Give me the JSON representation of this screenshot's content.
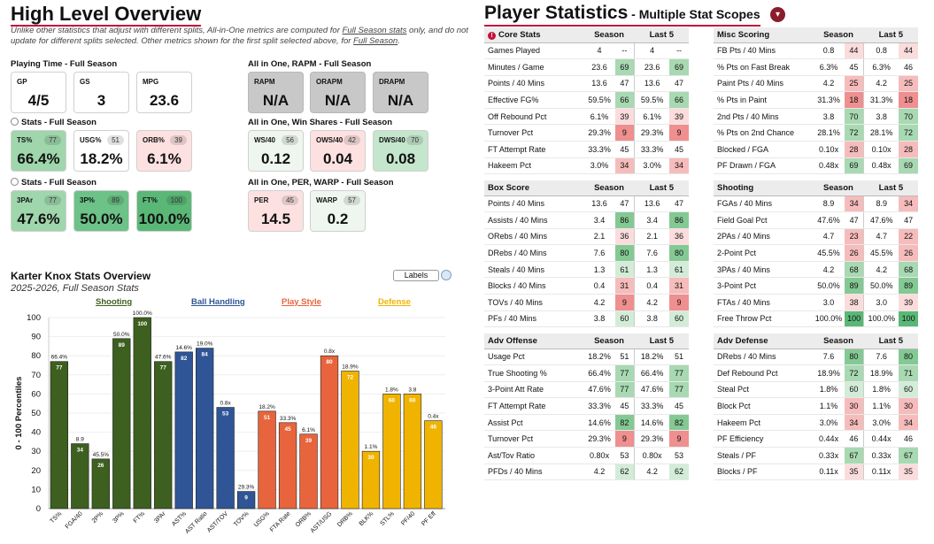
{
  "left": {
    "title": "High Level Overview",
    "note_pre": "Unlike other statistics that adjust with different splits, All-in-One metrics are computed for ",
    "note_link1": "Full Season stats",
    "note_mid": " only, and do not update for different splits selected. Other metrics shown for the first split selected above, for ",
    "note_link2": "Full Season",
    "note_end": ".",
    "groups": {
      "playing_time": "Playing Time - Full Season",
      "stats1": "Stats - Full Season",
      "stats2": "Stats - Full Season",
      "rapm": "All in One, RAPM - Full Season",
      "ws": "All in One, Win Shares - Full Season",
      "per": "All in One, PER, WARP - Full Season"
    },
    "boxes": {
      "gp": {
        "label": "GP",
        "value": "4/5"
      },
      "gs": {
        "label": "GS",
        "value": "3"
      },
      "mpg": {
        "label": "MPG",
        "value": "23.6"
      },
      "ts": {
        "label": "TS%",
        "pct": "77",
        "value": "66.4%"
      },
      "usg": {
        "label": "USG%",
        "pct": "51",
        "value": "18.2%"
      },
      "orb": {
        "label": "ORB%",
        "pct": "39",
        "value": "6.1%"
      },
      "tpar": {
        "label": "3PAr",
        "pct": "77",
        "value": "47.6%"
      },
      "tpp": {
        "label": "3P%",
        "pct": "89",
        "value": "50.0%"
      },
      "ft": {
        "label": "FT%",
        "pct": "100",
        "value": "100.0%"
      },
      "rapm": {
        "label": "RAPM",
        "value": "N/A"
      },
      "orapm": {
        "label": "ORAPM",
        "value": "N/A"
      },
      "drapm": {
        "label": "DRAPM",
        "value": "N/A"
      },
      "ws40": {
        "label": "WS/40",
        "pct": "56",
        "value": "0.12"
      },
      "ows40": {
        "label": "OWS/40",
        "pct": "42",
        "value": "0.04"
      },
      "dws40": {
        "label": "DWS/40",
        "pct": "70",
        "value": "0.08"
      },
      "per": {
        "label": "PER",
        "pct": "45",
        "value": "14.5"
      },
      "warp": {
        "label": "WARP",
        "pct": "57",
        "value": "0.2"
      }
    },
    "chart_title": "Karter Knox Stats Overview",
    "chart_subtitle": "2025-2026, Full Season Stats",
    "labels_button": "Labels",
    "categories": [
      {
        "name": "Shooting",
        "color": "#3d5f1f"
      },
      {
        "name": "Ball Handling",
        "color": "#2f5596"
      },
      {
        "name": "Play Style",
        "color": "#e8643c"
      },
      {
        "name": "Defense",
        "color": "#f0b400"
      }
    ]
  },
  "chart_data": {
    "type": "bar",
    "title": "Karter Knox Stats Overview",
    "subtitle": "2025-2026, Full Season Stats",
    "ylabel": "0 - 100 Percentiles",
    "ylim": [
      0,
      100
    ],
    "yticks": [
      0,
      10,
      20,
      30,
      40,
      50,
      60,
      70,
      80,
      90,
      100
    ],
    "bars": [
      {
        "label": "TS%",
        "value": 77,
        "raw": "66.4%",
        "group": "Shooting"
      },
      {
        "label": "FGA/40",
        "value": 34,
        "raw": "8.9",
        "group": "Shooting"
      },
      {
        "label": "2P%",
        "value": 26,
        "raw": "45.5%",
        "group": "Shooting"
      },
      {
        "label": "3P%",
        "value": 89,
        "raw": "50.0%",
        "group": "Shooting"
      },
      {
        "label": "FT%",
        "value": 100,
        "raw": "100.0%",
        "group": "Shooting"
      },
      {
        "label": "3PAr",
        "value": 77,
        "raw": "47.6%",
        "group": "Shooting"
      },
      {
        "label": "AST%",
        "value": 82,
        "raw": "14.6%",
        "group": "Ball Handling"
      },
      {
        "label": "AST Ratio",
        "value": 84,
        "raw": "19.0%",
        "group": "Ball Handling"
      },
      {
        "label": "AST/TOV",
        "value": 53,
        "raw": "0.8x",
        "group": "Ball Handling"
      },
      {
        "label": "TOV%",
        "value": 9,
        "raw": "29.3%",
        "group": "Ball Handling"
      },
      {
        "label": "USG%",
        "value": 51,
        "raw": "18.2%",
        "group": "Play Style"
      },
      {
        "label": "FTA Rate",
        "value": 45,
        "raw": "33.3%",
        "group": "Play Style"
      },
      {
        "label": "ORB%",
        "value": 39,
        "raw": "6.1%",
        "group": "Play Style"
      },
      {
        "label": "AST/USG",
        "value": 80,
        "raw": "0.8x",
        "group": "Play Style"
      },
      {
        "label": "DRB%",
        "value": 72,
        "raw": "18.9%",
        "group": "Defense"
      },
      {
        "label": "BLK%",
        "value": 30,
        "raw": "1.1%",
        "group": "Defense"
      },
      {
        "label": "STL%",
        "value": 60,
        "raw": "1.8%",
        "group": "Defense"
      },
      {
        "label": "PF/40",
        "value": 60,
        "raw": "3.8",
        "group": "Defense"
      },
      {
        "label": "PF Eff",
        "value": 46,
        "raw": "0.4x",
        "group": "Defense"
      }
    ]
  },
  "right": {
    "title": "Player Statistics",
    "subtitle": " - Multiple Stat Scopes",
    "scope_icon": "info-icon",
    "col_season": "Season",
    "col_last5": "Last 5",
    "tables": [
      {
        "key": "core",
        "title": "Core Stats",
        "rows": [
          [
            "Games Played",
            "4",
            "--",
            "4",
            "--"
          ],
          [
            "Minutes / Game",
            "23.6",
            "69",
            "23.6",
            "69"
          ],
          [
            "Points / 40 Mins",
            "13.6",
            "47",
            "13.6",
            "47"
          ],
          [
            "Effective FG%",
            "59.5%",
            "66",
            "59.5%",
            "66"
          ],
          [
            "Off Rebound Pct",
            "6.1%",
            "39",
            "6.1%",
            "39"
          ],
          [
            "Turnover Pct",
            "29.3%",
            "9",
            "29.3%",
            "9"
          ],
          [
            "FT Attempt Rate",
            "33.3%",
            "45",
            "33.3%",
            "45"
          ],
          [
            "Hakeem Pct",
            "3.0%",
            "34",
            "3.0%",
            "34"
          ]
        ]
      },
      {
        "key": "misc",
        "title": "Misc Scoring",
        "rows": [
          [
            "FB Pts / 40 Mins",
            "0.8",
            "44",
            "0.8",
            "44"
          ],
          [
            "% Pts on Fast Break",
            "6.3%",
            "45",
            "6.3%",
            "46"
          ],
          [
            "Paint Pts / 40 Mins",
            "4.2",
            "25",
            "4.2",
            "25"
          ],
          [
            "% Pts in Paint",
            "31.3%",
            "18",
            "31.3%",
            "18"
          ],
          [
            "2nd Pts / 40 Mins",
            "3.8",
            "70",
            "3.8",
            "70"
          ],
          [
            "% Pts on 2nd Chance",
            "28.1%",
            "72",
            "28.1%",
            "72"
          ],
          [
            "Blocked / FGA",
            "0.10x",
            "28",
            "0.10x",
            "28"
          ],
          [
            "PF Drawn / FGA",
            "0.48x",
            "69",
            "0.48x",
            "69"
          ]
        ]
      },
      {
        "key": "box",
        "title": "Box Score",
        "rows": [
          [
            "Points / 40 Mins",
            "13.6",
            "47",
            "13.6",
            "47"
          ],
          [
            "Assists / 40 Mins",
            "3.4",
            "86",
            "3.4",
            "86"
          ],
          [
            "ORebs / 40 Mins",
            "2.1",
            "36",
            "2.1",
            "36"
          ],
          [
            "DRebs / 40 Mins",
            "7.6",
            "80",
            "7.6",
            "80"
          ],
          [
            "Steals / 40 Mins",
            "1.3",
            "61",
            "1.3",
            "61"
          ],
          [
            "Blocks / 40 Mins",
            "0.4",
            "31",
            "0.4",
            "31"
          ],
          [
            "TOVs / 40 Mins",
            "4.2",
            "9",
            "4.2",
            "9"
          ],
          [
            "PFs / 40 Mins",
            "3.8",
            "60",
            "3.8",
            "60"
          ]
        ]
      },
      {
        "key": "shooting",
        "title": "Shooting",
        "rows": [
          [
            "FGAs / 40 Mins",
            "8.9",
            "34",
            "8.9",
            "34"
          ],
          [
            "Field Goal Pct",
            "47.6%",
            "47",
            "47.6%",
            "47"
          ],
          [
            "2PAs / 40 Mins",
            "4.7",
            "23",
            "4.7",
            "22"
          ],
          [
            "2-Point Pct",
            "45.5%",
            "26",
            "45.5%",
            "26"
          ],
          [
            "3PAs / 40 Mins",
            "4.2",
            "68",
            "4.2",
            "68"
          ],
          [
            "3-Point Pct",
            "50.0%",
            "89",
            "50.0%",
            "89"
          ],
          [
            "FTAs / 40 Mins",
            "3.0",
            "38",
            "3.0",
            "39"
          ],
          [
            "Free Throw Pct",
            "100.0%",
            "100",
            "100.0%",
            "100"
          ]
        ]
      },
      {
        "key": "advoff",
        "title": "Adv Offense",
        "rows": [
          [
            "Usage Pct",
            "18.2%",
            "51",
            "18.2%",
            "51"
          ],
          [
            "True Shooting %",
            "66.4%",
            "77",
            "66.4%",
            "77"
          ],
          [
            "3-Point Att Rate",
            "47.6%",
            "77",
            "47.6%",
            "77"
          ],
          [
            "FT Attempt Rate",
            "33.3%",
            "45",
            "33.3%",
            "45"
          ],
          [
            "Assist Pct",
            "14.6%",
            "82",
            "14.6%",
            "82"
          ],
          [
            "Turnover Pct",
            "29.3%",
            "9",
            "29.3%",
            "9"
          ],
          [
            "Ast/Tov Ratio",
            "0.80x",
            "53",
            "0.80x",
            "53"
          ],
          [
            "PFDs / 40 Mins",
            "4.2",
            "62",
            "4.2",
            "62"
          ]
        ]
      },
      {
        "key": "advdef",
        "title": "Adv Defense",
        "rows": [
          [
            "DRebs / 40 Mins",
            "7.6",
            "80",
            "7.6",
            "80"
          ],
          [
            "Def Rebound Pct",
            "18.9%",
            "72",
            "18.9%",
            "71"
          ],
          [
            "Steal Pct",
            "1.8%",
            "60",
            "1.8%",
            "60"
          ],
          [
            "Block Pct",
            "1.1%",
            "30",
            "1.1%",
            "30"
          ],
          [
            "Hakeem Pct",
            "3.0%",
            "34",
            "3.0%",
            "34"
          ],
          [
            "PF Efficiency",
            "0.44x",
            "46",
            "0.44x",
            "46"
          ],
          [
            "Steals / PF",
            "0.33x",
            "67",
            "0.33x",
            "67"
          ],
          [
            "Blocks / PF",
            "0.11x",
            "35",
            "0.11x",
            "35"
          ]
        ]
      }
    ]
  }
}
